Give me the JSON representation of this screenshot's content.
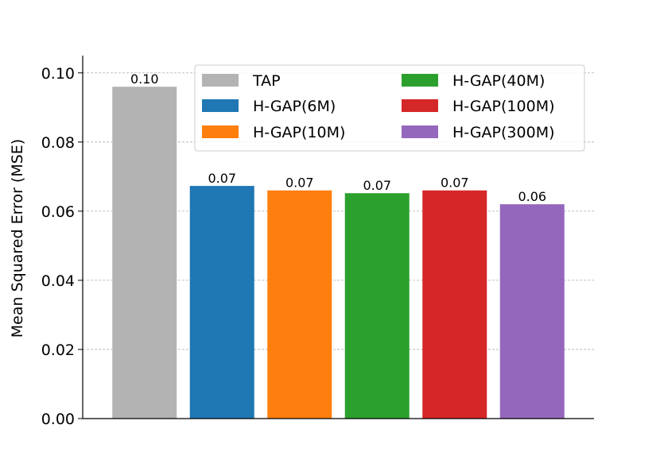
{
  "chart_data": {
    "type": "bar",
    "title": "",
    "xlabel": "",
    "ylabel": "Mean Squared Error (MSE)",
    "ylim": [
      0,
      0.105
    ],
    "yticks": [
      0.0,
      0.02,
      0.04,
      0.06,
      0.08,
      0.1
    ],
    "ytick_labels": [
      "0.00",
      "0.02",
      "0.04",
      "0.06",
      "0.08",
      "0.10"
    ],
    "grid": "y-dashed",
    "legend_position": "top-right",
    "legend_columns": 2,
    "series": [
      {
        "name": "TAP",
        "value": 0.096,
        "label": "0.10",
        "color": "#b3b3b3"
      },
      {
        "name": "H-GAP(6M)",
        "value": 0.0673,
        "label": "0.07",
        "color": "#1f77b4"
      },
      {
        "name": "H-GAP(10M)",
        "value": 0.066,
        "label": "0.07",
        "color": "#ff7f0e"
      },
      {
        "name": "H-GAP(40M)",
        "value": 0.0652,
        "label": "0.07",
        "color": "#2ca02c"
      },
      {
        "name": "H-GAP(100M)",
        "value": 0.066,
        "label": "0.07",
        "color": "#d62728"
      },
      {
        "name": "H-GAP(300M)",
        "value": 0.062,
        "label": "0.06",
        "color": "#9467bd"
      }
    ],
    "legend_order": [
      0,
      3,
      1,
      4,
      2,
      5
    ]
  }
}
